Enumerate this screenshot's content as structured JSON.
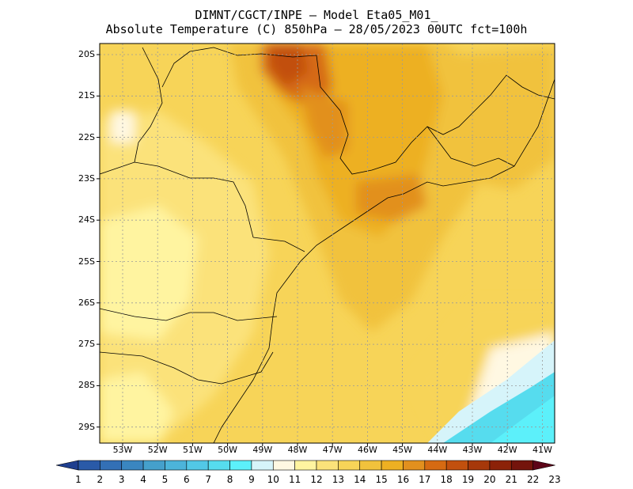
{
  "title": {
    "line1": "DIMNT/CGCT/INPE –  Model Eta05_M01_",
    "line2": "Absolute Temperature (C) 850hPa –  28/05/2023 00UTC fct=100h"
  },
  "map": {
    "lat_labels": [
      "20S",
      "21S",
      "22S",
      "23S",
      "24S",
      "25S",
      "26S",
      "27S",
      "28S",
      "29S"
    ],
    "lon_labels": [
      "53W",
      "52W",
      "51W",
      "50W",
      "49W",
      "48W",
      "47W",
      "46W",
      "45W",
      "44W",
      "43W",
      "42W",
      "41W"
    ],
    "grid": true,
    "projection": "lat-lon",
    "extent": {
      "lon": [
        -53.8,
        -40.5
      ],
      "lat": [
        -29.4,
        -19.8
      ]
    }
  },
  "colorbar": {
    "labels": [
      "1",
      "2",
      "3",
      "4",
      "5",
      "6",
      "7",
      "8",
      "9",
      "10",
      "11",
      "12",
      "13",
      "14",
      "15",
      "16",
      "17",
      "18",
      "19",
      "20",
      "21",
      "22",
      "23"
    ],
    "colors": [
      "#1f3f8f",
      "#2a5aa8",
      "#3370b6",
      "#3a86c0",
      "#45a0cc",
      "#4cb4da",
      "#52c8e6",
      "#56dcee",
      "#5cf0fa",
      "#d6f4fa",
      "#fff8e2",
      "#fff4a0",
      "#fbe27a",
      "#f7d458",
      "#f1c23c",
      "#edb022",
      "#e2901e",
      "#d66a12",
      "#c2500e",
      "#a6380a",
      "#8c2208",
      "#74140c",
      "#5c0418"
    ]
  }
}
